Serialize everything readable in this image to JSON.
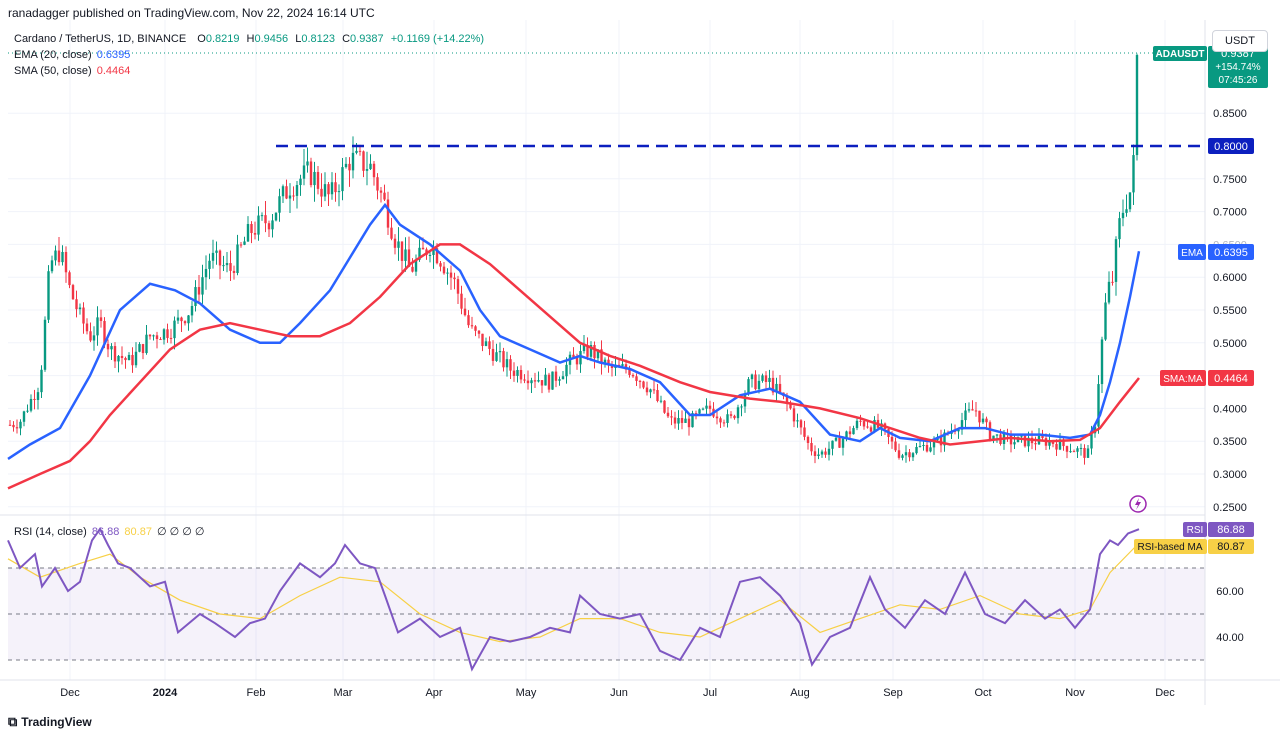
{
  "header": {
    "publisher": "ranadagger published on TradingView.com, Nov 22, 2024 16:14 UTC"
  },
  "legend": {
    "symbol": "Cardano / TetherUS, 1D, BINANCE",
    "o_label": "O",
    "o": "0.8219",
    "h_label": "H",
    "h": "0.9456",
    "l_label": "L",
    "l": "0.8123",
    "c_label": "C",
    "c": "0.9387",
    "change": "+0.1169 (+14.22%)",
    "ema_label": "EMA (20, close)",
    "ema_value": "0.6395",
    "sma_label": "SMA (50, close)",
    "sma_value": "0.4464",
    "rsi_label": "RSI (14, close)",
    "rsi_value": "86.88",
    "rsi_ma_value": "80.87",
    "rsi_extras": "∅ ∅ ∅ ∅"
  },
  "price_axis": {
    "currency_button": "USDT",
    "ticks": [
      "0.8500",
      "0.7500",
      "0.7000",
      "0.6500",
      "0.6000",
      "0.5500",
      "0.5000",
      "0.4500",
      "0.4000",
      "0.3500",
      "0.3000",
      "0.2500"
    ],
    "tags": {
      "symbol": "ADAUSDT",
      "price": "0.9387",
      "pct": "+154.74%",
      "countdown": "07:45:26",
      "level": "0.8000",
      "ema_name": "EMA",
      "ema": "0.6395",
      "sma_name": "SMA:MA",
      "sma": "0.4464"
    }
  },
  "rsi_axis": {
    "ticks": [
      "60.00",
      "40.00"
    ],
    "tags": {
      "rsi_name": "RSI",
      "rsi": "86.88",
      "ma_name": "RSI-based MA",
      "ma": "80.87"
    }
  },
  "time_axis": [
    "Dec",
    "2024",
    "Feb",
    "Mar",
    "Apr",
    "May",
    "Jun",
    "Jul",
    "Aug",
    "Sep",
    "Oct",
    "Nov",
    "Dec"
  ],
  "footer": {
    "brand": "TradingView"
  },
  "colors": {
    "up": "#089981",
    "down": "#f23645",
    "ema": "#2962ff",
    "sma": "#f23645",
    "rsi": "#7e57c2",
    "rsi_ma": "#f7d046",
    "level": "#0c1fbf",
    "grid": "#f0f3fa"
  },
  "chart_data": {
    "type": "candlestick",
    "price_scale": [
      0.25,
      0.95
    ],
    "resistance_level": 0.8,
    "price_anchors": [
      [
        0,
        0.37
      ],
      [
        20,
        0.38
      ],
      [
        40,
        0.44
      ],
      [
        50,
        0.62
      ],
      [
        60,
        0.64
      ],
      [
        70,
        0.58
      ],
      [
        80,
        0.54
      ],
      [
        90,
        0.51
      ],
      [
        100,
        0.53
      ],
      [
        110,
        0.49
      ],
      [
        130,
        0.47
      ],
      [
        150,
        0.51
      ],
      [
        170,
        0.52
      ],
      [
        190,
        0.55
      ],
      [
        210,
        0.63
      ],
      [
        230,
        0.61
      ],
      [
        250,
        0.67
      ],
      [
        270,
        0.69
      ],
      [
        290,
        0.74
      ],
      [
        310,
        0.76
      ],
      [
        330,
        0.72
      ],
      [
        350,
        0.78
      ],
      [
        370,
        0.77
      ],
      [
        385,
        0.71
      ],
      [
        395,
        0.66
      ],
      [
        410,
        0.61
      ],
      [
        420,
        0.63
      ],
      [
        430,
        0.65
      ],
      [
        440,
        0.63
      ],
      [
        455,
        0.59
      ],
      [
        470,
        0.52
      ],
      [
        490,
        0.49
      ],
      [
        510,
        0.46
      ],
      [
        530,
        0.45
      ],
      [
        550,
        0.44
      ],
      [
        570,
        0.47
      ],
      [
        590,
        0.49
      ],
      [
        610,
        0.46
      ],
      [
        630,
        0.46
      ],
      [
        650,
        0.43
      ],
      [
        670,
        0.38
      ],
      [
        690,
        0.38
      ],
      [
        710,
        0.4
      ],
      [
        730,
        0.38
      ],
      [
        750,
        0.44
      ],
      [
        770,
        0.44
      ],
      [
        790,
        0.4
      ],
      [
        810,
        0.34
      ],
      [
        820,
        0.33
      ],
      [
        840,
        0.35
      ],
      [
        860,
        0.38
      ],
      [
        880,
        0.37
      ],
      [
        900,
        0.33
      ],
      [
        920,
        0.34
      ],
      [
        940,
        0.35
      ],
      [
        960,
        0.38
      ],
      [
        975,
        0.4
      ],
      [
        990,
        0.36
      ],
      [
        1010,
        0.35
      ],
      [
        1030,
        0.35
      ],
      [
        1050,
        0.35
      ],
      [
        1070,
        0.34
      ],
      [
        1088,
        0.33
      ],
      [
        1095,
        0.38
      ],
      [
        1100,
        0.47
      ],
      [
        1107,
        0.58
      ],
      [
        1112,
        0.59
      ],
      [
        1118,
        0.67
      ],
      [
        1124,
        0.71
      ],
      [
        1130,
        0.73
      ],
      [
        1135,
        0.79
      ],
      [
        1139,
        0.94
      ]
    ],
    "ema": [
      [
        8,
        0.323
      ],
      [
        30,
        0.345
      ],
      [
        60,
        0.37
      ],
      [
        90,
        0.45
      ],
      [
        120,
        0.55
      ],
      [
        150,
        0.59
      ],
      [
        175,
        0.58
      ],
      [
        200,
        0.56
      ],
      [
        230,
        0.52
      ],
      [
        260,
        0.5
      ],
      [
        280,
        0.5
      ],
      [
        300,
        0.53
      ],
      [
        330,
        0.58
      ],
      [
        350,
        0.63
      ],
      [
        370,
        0.68
      ],
      [
        385,
        0.71
      ],
      [
        400,
        0.68
      ],
      [
        430,
        0.65
      ],
      [
        460,
        0.61
      ],
      [
        480,
        0.55
      ],
      [
        500,
        0.51
      ],
      [
        530,
        0.49
      ],
      [
        560,
        0.47
      ],
      [
        580,
        0.48
      ],
      [
        600,
        0.47
      ],
      [
        630,
        0.46
      ],
      [
        660,
        0.44
      ],
      [
        690,
        0.39
      ],
      [
        710,
        0.39
      ],
      [
        740,
        0.42
      ],
      [
        770,
        0.43
      ],
      [
        800,
        0.41
      ],
      [
        830,
        0.36
      ],
      [
        860,
        0.35
      ],
      [
        880,
        0.37
      ],
      [
        900,
        0.355
      ],
      [
        930,
        0.35
      ],
      [
        960,
        0.37
      ],
      [
        985,
        0.37
      ],
      [
        1010,
        0.36
      ],
      [
        1040,
        0.36
      ],
      [
        1070,
        0.355
      ],
      [
        1090,
        0.36
      ],
      [
        1100,
        0.39
      ],
      [
        1110,
        0.44
      ],
      [
        1120,
        0.5
      ],
      [
        1130,
        0.57
      ],
      [
        1139,
        0.6395
      ]
    ],
    "sma": [
      [
        8,
        0.278
      ],
      [
        40,
        0.3
      ],
      [
        70,
        0.32
      ],
      [
        90,
        0.35
      ],
      [
        110,
        0.39
      ],
      [
        140,
        0.44
      ],
      [
        170,
        0.49
      ],
      [
        200,
        0.52
      ],
      [
        230,
        0.53
      ],
      [
        260,
        0.52
      ],
      [
        290,
        0.51
      ],
      [
        320,
        0.51
      ],
      [
        350,
        0.53
      ],
      [
        380,
        0.57
      ],
      [
        410,
        0.62
      ],
      [
        440,
        0.65
      ],
      [
        460,
        0.65
      ],
      [
        490,
        0.62
      ],
      [
        520,
        0.58
      ],
      [
        550,
        0.54
      ],
      [
        580,
        0.5
      ],
      [
        610,
        0.48
      ],
      [
        640,
        0.465
      ],
      [
        680,
        0.44
      ],
      [
        710,
        0.425
      ],
      [
        750,
        0.415
      ],
      [
        780,
        0.41
      ],
      [
        820,
        0.4
      ],
      [
        860,
        0.385
      ],
      [
        890,
        0.37
      ],
      [
        920,
        0.355
      ],
      [
        950,
        0.345
      ],
      [
        980,
        0.35
      ],
      [
        1010,
        0.355
      ],
      [
        1050,
        0.35
      ],
      [
        1080,
        0.352
      ],
      [
        1100,
        0.37
      ],
      [
        1120,
        0.41
      ],
      [
        1139,
        0.4464
      ]
    ],
    "rsi_scale": [
      20,
      90
    ],
    "rsi_levels": [
      30,
      50,
      70
    ],
    "rsi": [
      [
        8,
        82
      ],
      [
        20,
        70
      ],
      [
        35,
        76
      ],
      [
        42,
        62
      ],
      [
        55,
        70
      ],
      [
        68,
        60
      ],
      [
        80,
        64
      ],
      [
        92,
        82
      ],
      [
        100,
        87
      ],
      [
        108,
        80
      ],
      [
        118,
        72
      ],
      [
        130,
        70
      ],
      [
        150,
        62
      ],
      [
        165,
        64
      ],
      [
        178,
        42
      ],
      [
        200,
        50
      ],
      [
        215,
        46
      ],
      [
        235,
        40
      ],
      [
        250,
        46
      ],
      [
        265,
        48
      ],
      [
        280,
        60
      ],
      [
        300,
        72
      ],
      [
        320,
        66
      ],
      [
        335,
        72
      ],
      [
        345,
        80
      ],
      [
        360,
        72
      ],
      [
        375,
        70
      ],
      [
        385,
        58
      ],
      [
        398,
        42
      ],
      [
        420,
        48
      ],
      [
        440,
        40
      ],
      [
        460,
        44
      ],
      [
        472,
        26
      ],
      [
        490,
        40
      ],
      [
        510,
        38
      ],
      [
        530,
        40
      ],
      [
        550,
        44
      ],
      [
        570,
        42
      ],
      [
        580,
        58
      ],
      [
        600,
        50
      ],
      [
        620,
        48
      ],
      [
        640,
        50
      ],
      [
        660,
        34
      ],
      [
        680,
        30
      ],
      [
        700,
        44
      ],
      [
        720,
        40
      ],
      [
        740,
        64
      ],
      [
        760,
        66
      ],
      [
        780,
        58
      ],
      [
        800,
        46
      ],
      [
        812,
        28
      ],
      [
        830,
        40
      ],
      [
        850,
        44
      ],
      [
        870,
        66
      ],
      [
        885,
        52
      ],
      [
        905,
        44
      ],
      [
        925,
        56
      ],
      [
        945,
        50
      ],
      [
        965,
        68
      ],
      [
        985,
        50
      ],
      [
        1005,
        46
      ],
      [
        1025,
        56
      ],
      [
        1045,
        48
      ],
      [
        1060,
        52
      ],
      [
        1075,
        44
      ],
      [
        1090,
        52
      ],
      [
        1100,
        76
      ],
      [
        1110,
        82
      ],
      [
        1118,
        80
      ],
      [
        1128,
        85
      ],
      [
        1139,
        86.88
      ]
    ],
    "rsi_ma": [
      [
        8,
        74
      ],
      [
        40,
        66
      ],
      [
        80,
        72
      ],
      [
        110,
        76
      ],
      [
        140,
        66
      ],
      [
        180,
        56
      ],
      [
        220,
        50
      ],
      [
        260,
        48
      ],
      [
        300,
        58
      ],
      [
        340,
        66
      ],
      [
        380,
        64
      ],
      [
        420,
        50
      ],
      [
        460,
        42
      ],
      [
        500,
        38
      ],
      [
        540,
        40
      ],
      [
        580,
        48
      ],
      [
        620,
        48
      ],
      [
        660,
        42
      ],
      [
        700,
        40
      ],
      [
        740,
        48
      ],
      [
        780,
        56
      ],
      [
        820,
        42
      ],
      [
        860,
        48
      ],
      [
        900,
        54
      ],
      [
        940,
        52
      ],
      [
        980,
        58
      ],
      [
        1020,
        50
      ],
      [
        1060,
        48
      ],
      [
        1090,
        52
      ],
      [
        1110,
        68
      ],
      [
        1139,
        80.87
      ]
    ]
  }
}
